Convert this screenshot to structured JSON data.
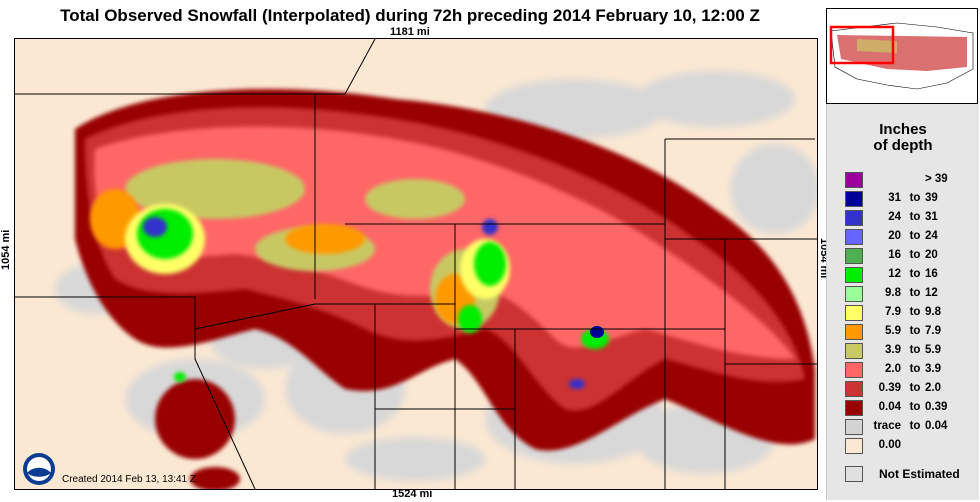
{
  "title": "Total Observed Snowfall (Interpolated) during 72h preceding 2014 February 10, 12:00 Z",
  "scale": {
    "top": "1181 mi",
    "bottom": "1524 mi",
    "left": "1054 mi",
    "right": "1054 mi"
  },
  "created": "Created 2014 Feb 13, 13:41 Z",
  "logo_text": "NOAA",
  "legend": {
    "title_line1": "Inches",
    "title_line2": "of depth",
    "items": [
      {
        "lo": "",
        "to": "",
        "hi": "> 39",
        "color": "#990099"
      },
      {
        "lo": "31",
        "to": "to",
        "hi": "39",
        "color": "#000099"
      },
      {
        "lo": "24",
        "to": "to",
        "hi": "31",
        "color": "#3333cc"
      },
      {
        "lo": "20",
        "to": "to",
        "hi": "24",
        "color": "#6666ff"
      },
      {
        "lo": "16",
        "to": "to",
        "hi": "20",
        "color": "#4caf50"
      },
      {
        "lo": "12",
        "to": "to",
        "hi": "16",
        "color": "#00ee00"
      },
      {
        "lo": "9.8",
        "to": "to",
        "hi": "12",
        "color": "#99ff99"
      },
      {
        "lo": "7.9",
        "to": "to",
        "hi": "9.8",
        "color": "#ffff66"
      },
      {
        "lo": "5.9",
        "to": "to",
        "hi": "7.9",
        "color": "#ff9900"
      },
      {
        "lo": "3.9",
        "to": "to",
        "hi": "5.9",
        "color": "#c8c864"
      },
      {
        "lo": "2.0",
        "to": "to",
        "hi": "3.9",
        "color": "#ff6666"
      },
      {
        "lo": "0.39",
        "to": "to",
        "hi": "2.0",
        "color": "#cc3333"
      },
      {
        "lo": "0.04",
        "to": "to",
        "hi": "0.39",
        "color": "#990000"
      },
      {
        "lo": "trace",
        "to": "to",
        "hi": "0.04",
        "color": "#d3d3d3"
      },
      {
        "lo": "0.00",
        "to": "",
        "hi": "",
        "color": "#fbe8d3"
      }
    ],
    "not_estimated": "Not Estimated"
  },
  "colors": {
    "background_land": "#fbe8d3",
    "not_estimated": "#e0e0e0",
    "inset_highlight": "#ff0000"
  }
}
